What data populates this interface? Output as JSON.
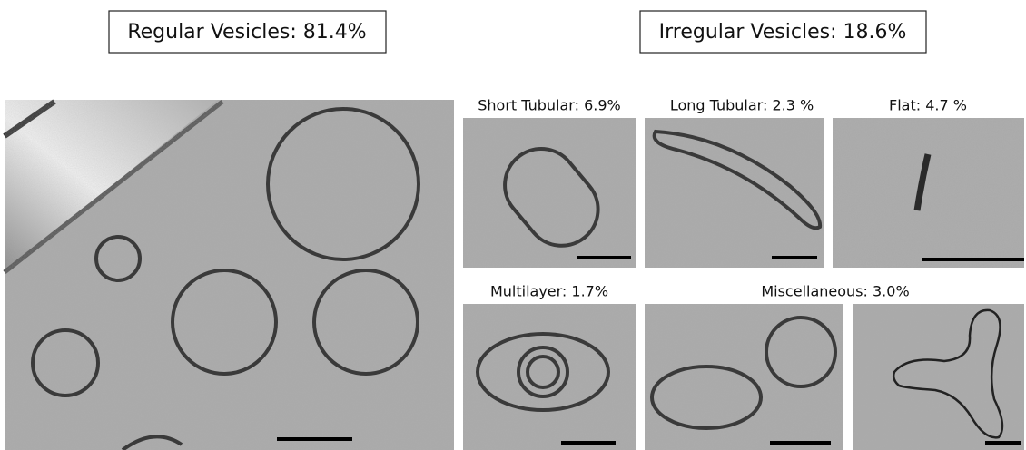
{
  "header": {
    "regular": "Regular Vesicles: 81.4%",
    "irregular": "Irregular Vesicles: 18.6%"
  },
  "panels": [
    {
      "label": "Short Tubular: 6.9%"
    },
    {
      "label": "Long Tubular: 2.3 %"
    },
    {
      "label": "Flat: 4.7 %"
    },
    {
      "label": "Multilayer: 1.7%"
    },
    {
      "label": "Miscellaneous: 3.0%"
    }
  ]
}
